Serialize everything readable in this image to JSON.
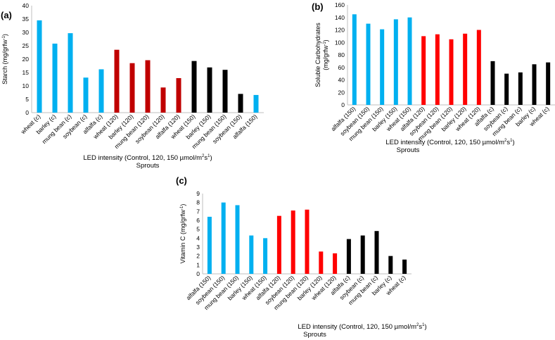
{
  "colors": {
    "blue": "#00B0F0",
    "red": "#C00000",
    "brightred": "#FF0000",
    "black": "#000000",
    "axis": "#BFBFBF"
  },
  "chart_data": [
    {
      "id": "a",
      "panel_label": "(a)",
      "type": "bar",
      "ylabel": "Starch (mg/grfw",
      "ylabel_sup": "-1",
      "ylabel_end": ")",
      "xlabel_line1": "LED intensity (Control, 120, 150 µmol/m",
      "xlabel_sup1": "2",
      "xlabel_mid": "s",
      "xlabel_sup2": "1",
      "xlabel_end": ")",
      "xlabel_line2": "Sprouts",
      "ylim": [
        0,
        40
      ],
      "yticks": [
        0,
        5,
        10,
        15,
        20,
        25,
        30,
        35,
        40
      ],
      "categories": [
        "wheat (c)",
        "barley (c)",
        "mung bean (c)",
        "soybean (c)",
        "alfalfa (c)",
        "wheat (120)",
        "barley (120)",
        "mung bean (120)",
        "soybean (120)",
        "alfalfa (120)",
        "wheat (150)",
        "barley (150)",
        "mung bean (150)",
        "soybean (150)",
        "alfalfa (150)"
      ],
      "values": [
        34.5,
        25.8,
        29.7,
        13.1,
        16.2,
        23.5,
        18.5,
        19.6,
        9.4,
        12.9,
        19.3,
        16.9,
        16.0,
        7.0,
        6.6
      ],
      "bar_colors": [
        "blue",
        "blue",
        "blue",
        "blue",
        "blue",
        "red",
        "red",
        "red",
        "red",
        "red",
        "black",
        "black",
        "black",
        "black",
        "blue"
      ]
    },
    {
      "id": "b",
      "panel_label": "(b)",
      "type": "bar",
      "ylabel": "Soluble Carbohydrates",
      "ylabel2": "(mg/grfw",
      "ylabel_sup": "-1",
      "ylabel_end": ")",
      "xlabel_line1": "LED intensity (Control, 120, 150 µmol/m",
      "xlabel_sup1": "2",
      "xlabel_mid": "s",
      "xlabel_sup2": "1",
      "xlabel_end": ")",
      "xlabel_line2": "Sprouts",
      "ylim": [
        0,
        160
      ],
      "yticks": [
        0,
        20,
        40,
        60,
        80,
        100,
        120,
        140,
        160
      ],
      "categories": [
        "alfalfa (150)",
        "soybean (150)",
        "mung bean (150)",
        "barley (150)",
        "wheat (150)",
        "alfalfa (120)",
        "soybean (120)",
        "mung bean (120)",
        "barley (120)",
        "wheat (120)",
        "alfalfa (c)",
        "soybean (c)",
        "mung bean (c)",
        "barley (c)",
        "wheat (c)"
      ],
      "values": [
        145,
        130,
        121,
        137,
        140,
        110,
        113,
        105,
        114,
        120,
        70,
        50,
        52,
        65,
        68
      ],
      "bar_colors": [
        "blue",
        "blue",
        "blue",
        "blue",
        "blue",
        "brightred",
        "brightred",
        "brightred",
        "brightred",
        "brightred",
        "black",
        "black",
        "black",
        "black",
        "black"
      ]
    },
    {
      "id": "c",
      "panel_label": "(c)",
      "type": "bar",
      "ylabel": "Vitamin C (mg/grfw",
      "ylabel_sup": "-1",
      "ylabel_end": ")",
      "xlabel_line1": "LED intensity (Control, 120, 150 µmol/m",
      "xlabel_sup1": "2",
      "xlabel_mid": "s",
      "xlabel_sup2": "1",
      "xlabel_end": ")",
      "xlabel_line2": "Sprouts",
      "ylim": [
        0,
        9
      ],
      "yticks": [
        0,
        1,
        2,
        3,
        4,
        5,
        6,
        7,
        8,
        9
      ],
      "categories": [
        "alfalfa (150)",
        "soybean (150)",
        "mung bean (150)",
        "barley (150)",
        "wheat (150)",
        "alfalfa (120)",
        "soybean (120)",
        "mung bean (120)",
        "barley (120)",
        "wheat (120)",
        "alfalfa (c)",
        "soybean (c)",
        "mung bean (c)",
        "barley (c)",
        "wheat (c)"
      ],
      "values": [
        6.4,
        8.0,
        7.7,
        4.3,
        4.0,
        6.5,
        7.1,
        7.2,
        2.5,
        2.3,
        3.9,
        4.3,
        4.8,
        2.0,
        1.6
      ],
      "bar_colors": [
        "blue",
        "blue",
        "blue",
        "blue",
        "blue",
        "brightred",
        "brightred",
        "brightred",
        "brightred",
        "brightred",
        "black",
        "black",
        "black",
        "black",
        "black"
      ]
    }
  ]
}
